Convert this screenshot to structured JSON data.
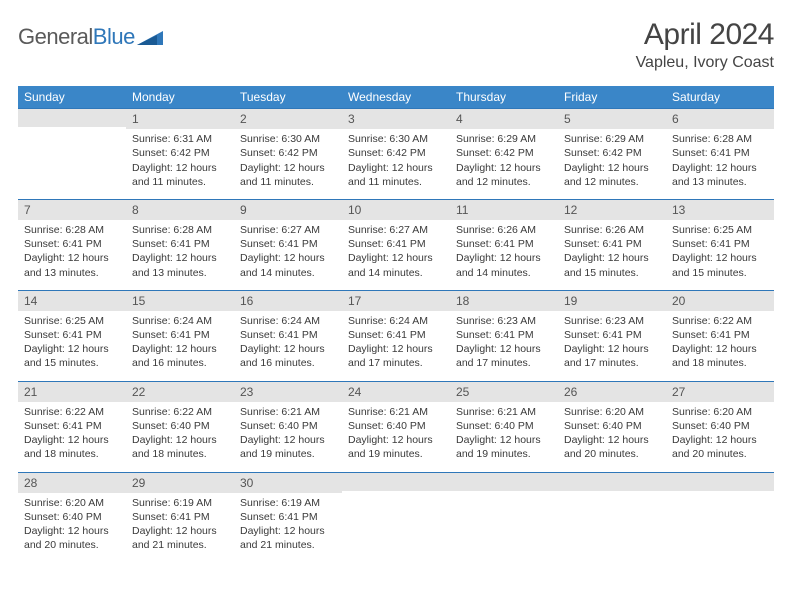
{
  "brand": {
    "part1": "General",
    "part2": "Blue"
  },
  "title": "April 2024",
  "location": "Vapleu, Ivory Coast",
  "colors": {
    "header_bg": "#3a86c8",
    "header_text": "#ffffff",
    "daynum_bg": "#e4e4e4",
    "daynum_border": "#2f77b9",
    "body_text": "#3a3a3a",
    "page_bg": "#ffffff"
  },
  "dayNames": [
    "Sunday",
    "Monday",
    "Tuesday",
    "Wednesday",
    "Thursday",
    "Friday",
    "Saturday"
  ],
  "leadingBlanks": 1,
  "days": [
    {
      "n": 1,
      "sr": "6:31 AM",
      "ss": "6:42 PM",
      "dl": "12 hours and 11 minutes."
    },
    {
      "n": 2,
      "sr": "6:30 AM",
      "ss": "6:42 PM",
      "dl": "12 hours and 11 minutes."
    },
    {
      "n": 3,
      "sr": "6:30 AM",
      "ss": "6:42 PM",
      "dl": "12 hours and 11 minutes."
    },
    {
      "n": 4,
      "sr": "6:29 AM",
      "ss": "6:42 PM",
      "dl": "12 hours and 12 minutes."
    },
    {
      "n": 5,
      "sr": "6:29 AM",
      "ss": "6:42 PM",
      "dl": "12 hours and 12 minutes."
    },
    {
      "n": 6,
      "sr": "6:28 AM",
      "ss": "6:41 PM",
      "dl": "12 hours and 13 minutes."
    },
    {
      "n": 7,
      "sr": "6:28 AM",
      "ss": "6:41 PM",
      "dl": "12 hours and 13 minutes."
    },
    {
      "n": 8,
      "sr": "6:28 AM",
      "ss": "6:41 PM",
      "dl": "12 hours and 13 minutes."
    },
    {
      "n": 9,
      "sr": "6:27 AM",
      "ss": "6:41 PM",
      "dl": "12 hours and 14 minutes."
    },
    {
      "n": 10,
      "sr": "6:27 AM",
      "ss": "6:41 PM",
      "dl": "12 hours and 14 minutes."
    },
    {
      "n": 11,
      "sr": "6:26 AM",
      "ss": "6:41 PM",
      "dl": "12 hours and 14 minutes."
    },
    {
      "n": 12,
      "sr": "6:26 AM",
      "ss": "6:41 PM",
      "dl": "12 hours and 15 minutes."
    },
    {
      "n": 13,
      "sr": "6:25 AM",
      "ss": "6:41 PM",
      "dl": "12 hours and 15 minutes."
    },
    {
      "n": 14,
      "sr": "6:25 AM",
      "ss": "6:41 PM",
      "dl": "12 hours and 15 minutes."
    },
    {
      "n": 15,
      "sr": "6:24 AM",
      "ss": "6:41 PM",
      "dl": "12 hours and 16 minutes."
    },
    {
      "n": 16,
      "sr": "6:24 AM",
      "ss": "6:41 PM",
      "dl": "12 hours and 16 minutes."
    },
    {
      "n": 17,
      "sr": "6:24 AM",
      "ss": "6:41 PM",
      "dl": "12 hours and 17 minutes."
    },
    {
      "n": 18,
      "sr": "6:23 AM",
      "ss": "6:41 PM",
      "dl": "12 hours and 17 minutes."
    },
    {
      "n": 19,
      "sr": "6:23 AM",
      "ss": "6:41 PM",
      "dl": "12 hours and 17 minutes."
    },
    {
      "n": 20,
      "sr": "6:22 AM",
      "ss": "6:41 PM",
      "dl": "12 hours and 18 minutes."
    },
    {
      "n": 21,
      "sr": "6:22 AM",
      "ss": "6:41 PM",
      "dl": "12 hours and 18 minutes."
    },
    {
      "n": 22,
      "sr": "6:22 AM",
      "ss": "6:40 PM",
      "dl": "12 hours and 18 minutes."
    },
    {
      "n": 23,
      "sr": "6:21 AM",
      "ss": "6:40 PM",
      "dl": "12 hours and 19 minutes."
    },
    {
      "n": 24,
      "sr": "6:21 AM",
      "ss": "6:40 PM",
      "dl": "12 hours and 19 minutes."
    },
    {
      "n": 25,
      "sr": "6:21 AM",
      "ss": "6:40 PM",
      "dl": "12 hours and 19 minutes."
    },
    {
      "n": 26,
      "sr": "6:20 AM",
      "ss": "6:40 PM",
      "dl": "12 hours and 20 minutes."
    },
    {
      "n": 27,
      "sr": "6:20 AM",
      "ss": "6:40 PM",
      "dl": "12 hours and 20 minutes."
    },
    {
      "n": 28,
      "sr": "6:20 AM",
      "ss": "6:40 PM",
      "dl": "12 hours and 20 minutes."
    },
    {
      "n": 29,
      "sr": "6:19 AM",
      "ss": "6:41 PM",
      "dl": "12 hours and 21 minutes."
    },
    {
      "n": 30,
      "sr": "6:19 AM",
      "ss": "6:41 PM",
      "dl": "12 hours and 21 minutes."
    }
  ],
  "labels": {
    "sunrise": "Sunrise:",
    "sunset": "Sunset:",
    "daylight": "Daylight:"
  }
}
